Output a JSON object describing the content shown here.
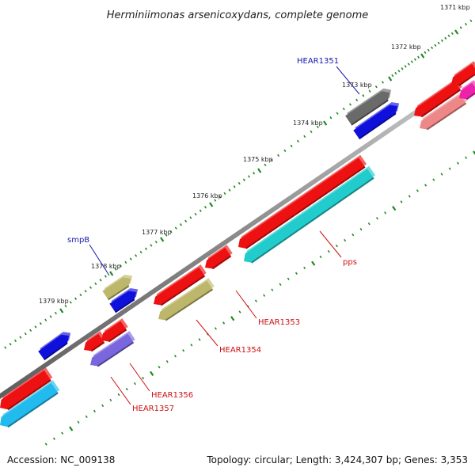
{
  "title": "Herminiimonas arsenicoxydans, complete genome",
  "footer": {
    "accession": "Accession: NC_009138",
    "info": "Topology: circular; Length: 3,424,307 bp; Genes: 3,353"
  },
  "colors": {
    "backbone": "#888888",
    "tick": "#228822",
    "label_forward": "#1a1aaa",
    "label_reverse": "#cc1111"
  },
  "ticks": [
    {
      "label": "1371 kbp",
      "kbp": 1371
    },
    {
      "label": "1372 kbp",
      "kbp": 1372
    },
    {
      "label": "1373 kbp",
      "kbp": 1373
    },
    {
      "label": "1374 kbp",
      "kbp": 1374
    },
    {
      "label": "1375 kbp",
      "kbp": 1375
    },
    {
      "label": "1376 kbp",
      "kbp": 1376
    },
    {
      "label": "1377 kbp",
      "kbp": 1377
    },
    {
      "label": "1378 kbp",
      "kbp": 1378
    },
    {
      "label": "1379 kbp",
      "kbp": 1379
    }
  ],
  "gene_labels": [
    {
      "name": "HEAR1351",
      "strand": "forward"
    },
    {
      "name": "smpB",
      "strand": "forward"
    },
    {
      "name": "pps",
      "strand": "reverse"
    },
    {
      "name": "HEAR1353",
      "strand": "reverse"
    },
    {
      "name": "HEAR1354",
      "strand": "reverse"
    },
    {
      "name": "HEAR1356",
      "strand": "reverse"
    },
    {
      "name": "HEAR1357",
      "strand": "reverse"
    }
  ],
  "features": [
    {
      "color": "#6a6a6a",
      "track": "outer",
      "dir": "forward"
    },
    {
      "color": "#1010dd",
      "track": "inner",
      "dir": "forward"
    },
    {
      "color": "#ee1111",
      "track": "outer",
      "dir": "reverse"
    },
    {
      "color": "#ee8888",
      "track": "inner",
      "dir": "reverse"
    },
    {
      "color": "#ee1111",
      "track": "outer",
      "dir": "reverse"
    },
    {
      "color": "#ee22aa",
      "track": "inner",
      "dir": "reverse"
    },
    {
      "color": "#ee1111",
      "track": "outer",
      "dir": "reverse"
    },
    {
      "color": "#22cccc",
      "track": "inner",
      "dir": "reverse"
    },
    {
      "color": "#ee1111",
      "track": "outer",
      "dir": "reverse"
    },
    {
      "color": "#ee1111",
      "track": "outer",
      "dir": "reverse"
    },
    {
      "color": "#bdb76b",
      "track": "inner",
      "dir": "reverse"
    },
    {
      "color": "#bdb76b",
      "track": "outer",
      "dir": "forward"
    },
    {
      "color": "#1010dd",
      "track": "inner",
      "dir": "forward"
    },
    {
      "color": "#1010dd",
      "track": "inner",
      "dir": "forward"
    },
    {
      "color": "#ee1111",
      "track": "outer",
      "dir": "reverse"
    },
    {
      "color": "#ee1111",
      "track": "outer",
      "dir": "reverse"
    },
    {
      "color": "#7a66dd",
      "track": "inner",
      "dir": "reverse"
    },
    {
      "color": "#ee1111",
      "track": "outer",
      "dir": "reverse"
    },
    {
      "color": "#22bbee",
      "track": "inner",
      "dir": "reverse"
    }
  ]
}
